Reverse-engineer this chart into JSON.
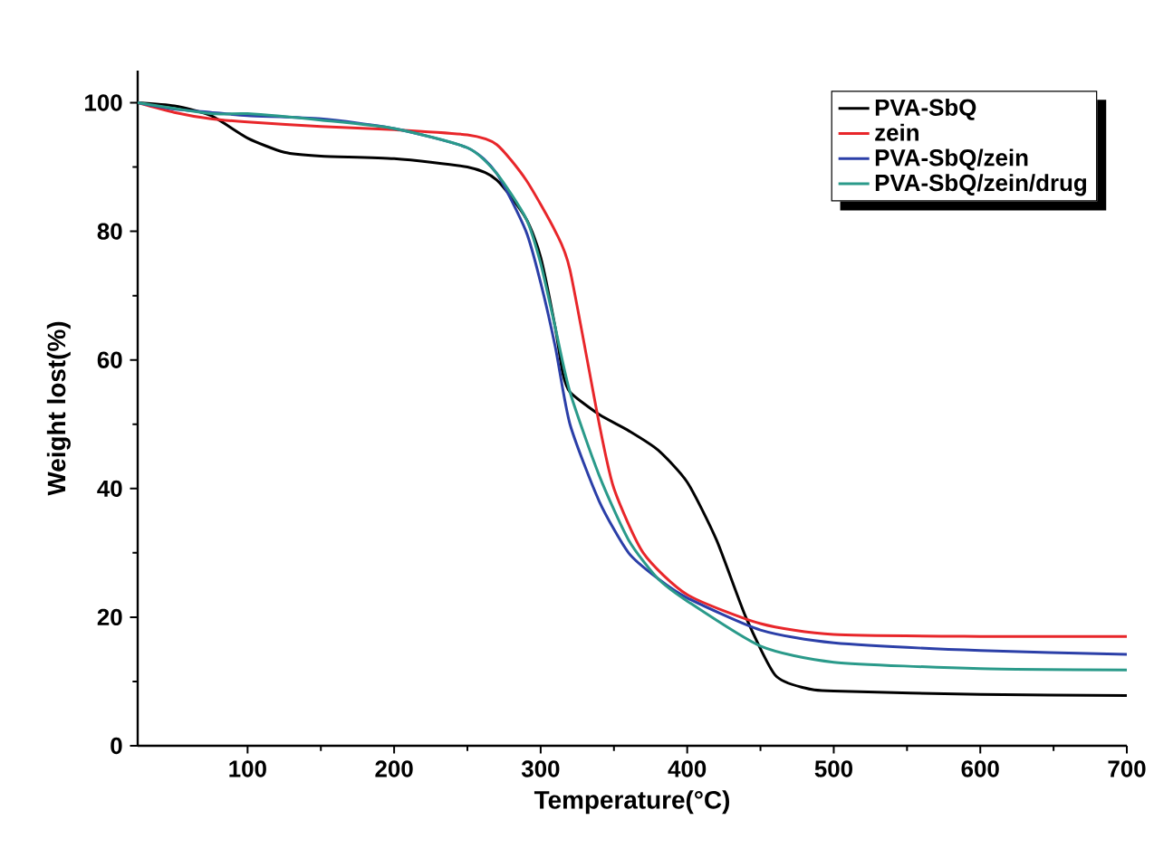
{
  "chart_data": {
    "type": "line",
    "xlabel": "Temperature(°C)",
    "ylabel": "Weight lost(%)",
    "xlim": [
      25,
      700
    ],
    "ylim": [
      0,
      105
    ],
    "xticks": [
      100,
      200,
      300,
      400,
      500,
      600,
      700
    ],
    "yticks": [
      0,
      20,
      40,
      60,
      80,
      100
    ],
    "legend": "top right",
    "grid": false,
    "marker": "none",
    "line_style": "solid",
    "series": [
      {
        "name": "PVA-SbQ",
        "color": "#000000",
        "x": [
          25,
          50,
          75,
          100,
          125,
          150,
          200,
          250,
          270,
          290,
          300,
          310,
          315,
          320,
          340,
          360,
          380,
          400,
          420,
          440,
          460,
          480,
          500,
          600,
          700
        ],
        "values": [
          100,
          99.5,
          98,
          94.5,
          92.3,
          91.7,
          91.3,
          90,
          88,
          82,
          76,
          65,
          58,
          55,
          51.5,
          49,
          46,
          41,
          32,
          20,
          11,
          9,
          8.5,
          8,
          7.8
        ]
      },
      {
        "name": "zein",
        "color": "#e8262a",
        "x": [
          25,
          50,
          75,
          100,
          150,
          200,
          250,
          270,
          290,
          310,
          320,
          340,
          350,
          370,
          400,
          450,
          500,
          600,
          700
        ],
        "values": [
          100,
          98.5,
          97.5,
          97,
          96.3,
          95.8,
          95,
          93.5,
          88,
          80,
          74,
          50,
          40,
          30,
          23.5,
          19,
          17.3,
          17,
          17
        ]
      },
      {
        "name": "PVA-SbQ/zein",
        "color": "#2b3fa8",
        "x": [
          25,
          50,
          75,
          100,
          150,
          200,
          250,
          270,
          290,
          300,
          310,
          320,
          340,
          360,
          380,
          400,
          450,
          500,
          600,
          700
        ],
        "values": [
          100,
          99,
          98.5,
          98,
          97.5,
          96,
          93,
          89,
          80,
          72,
          62,
          50,
          38,
          30,
          26,
          23,
          18,
          16,
          14.8,
          14.2
        ]
      },
      {
        "name": "PVA-SbQ/zein/drug",
        "color": "#2a9a8a",
        "x": [
          25,
          75,
          100,
          150,
          200,
          250,
          270,
          290,
          300,
          310,
          320,
          340,
          360,
          380,
          400,
          450,
          500,
          600,
          700
        ],
        "values": [
          100,
          98.3,
          98.3,
          97.3,
          96,
          93,
          89,
          82,
          75,
          65,
          55,
          42,
          32,
          26,
          22.5,
          15.5,
          13,
          12,
          11.8
        ]
      }
    ]
  }
}
